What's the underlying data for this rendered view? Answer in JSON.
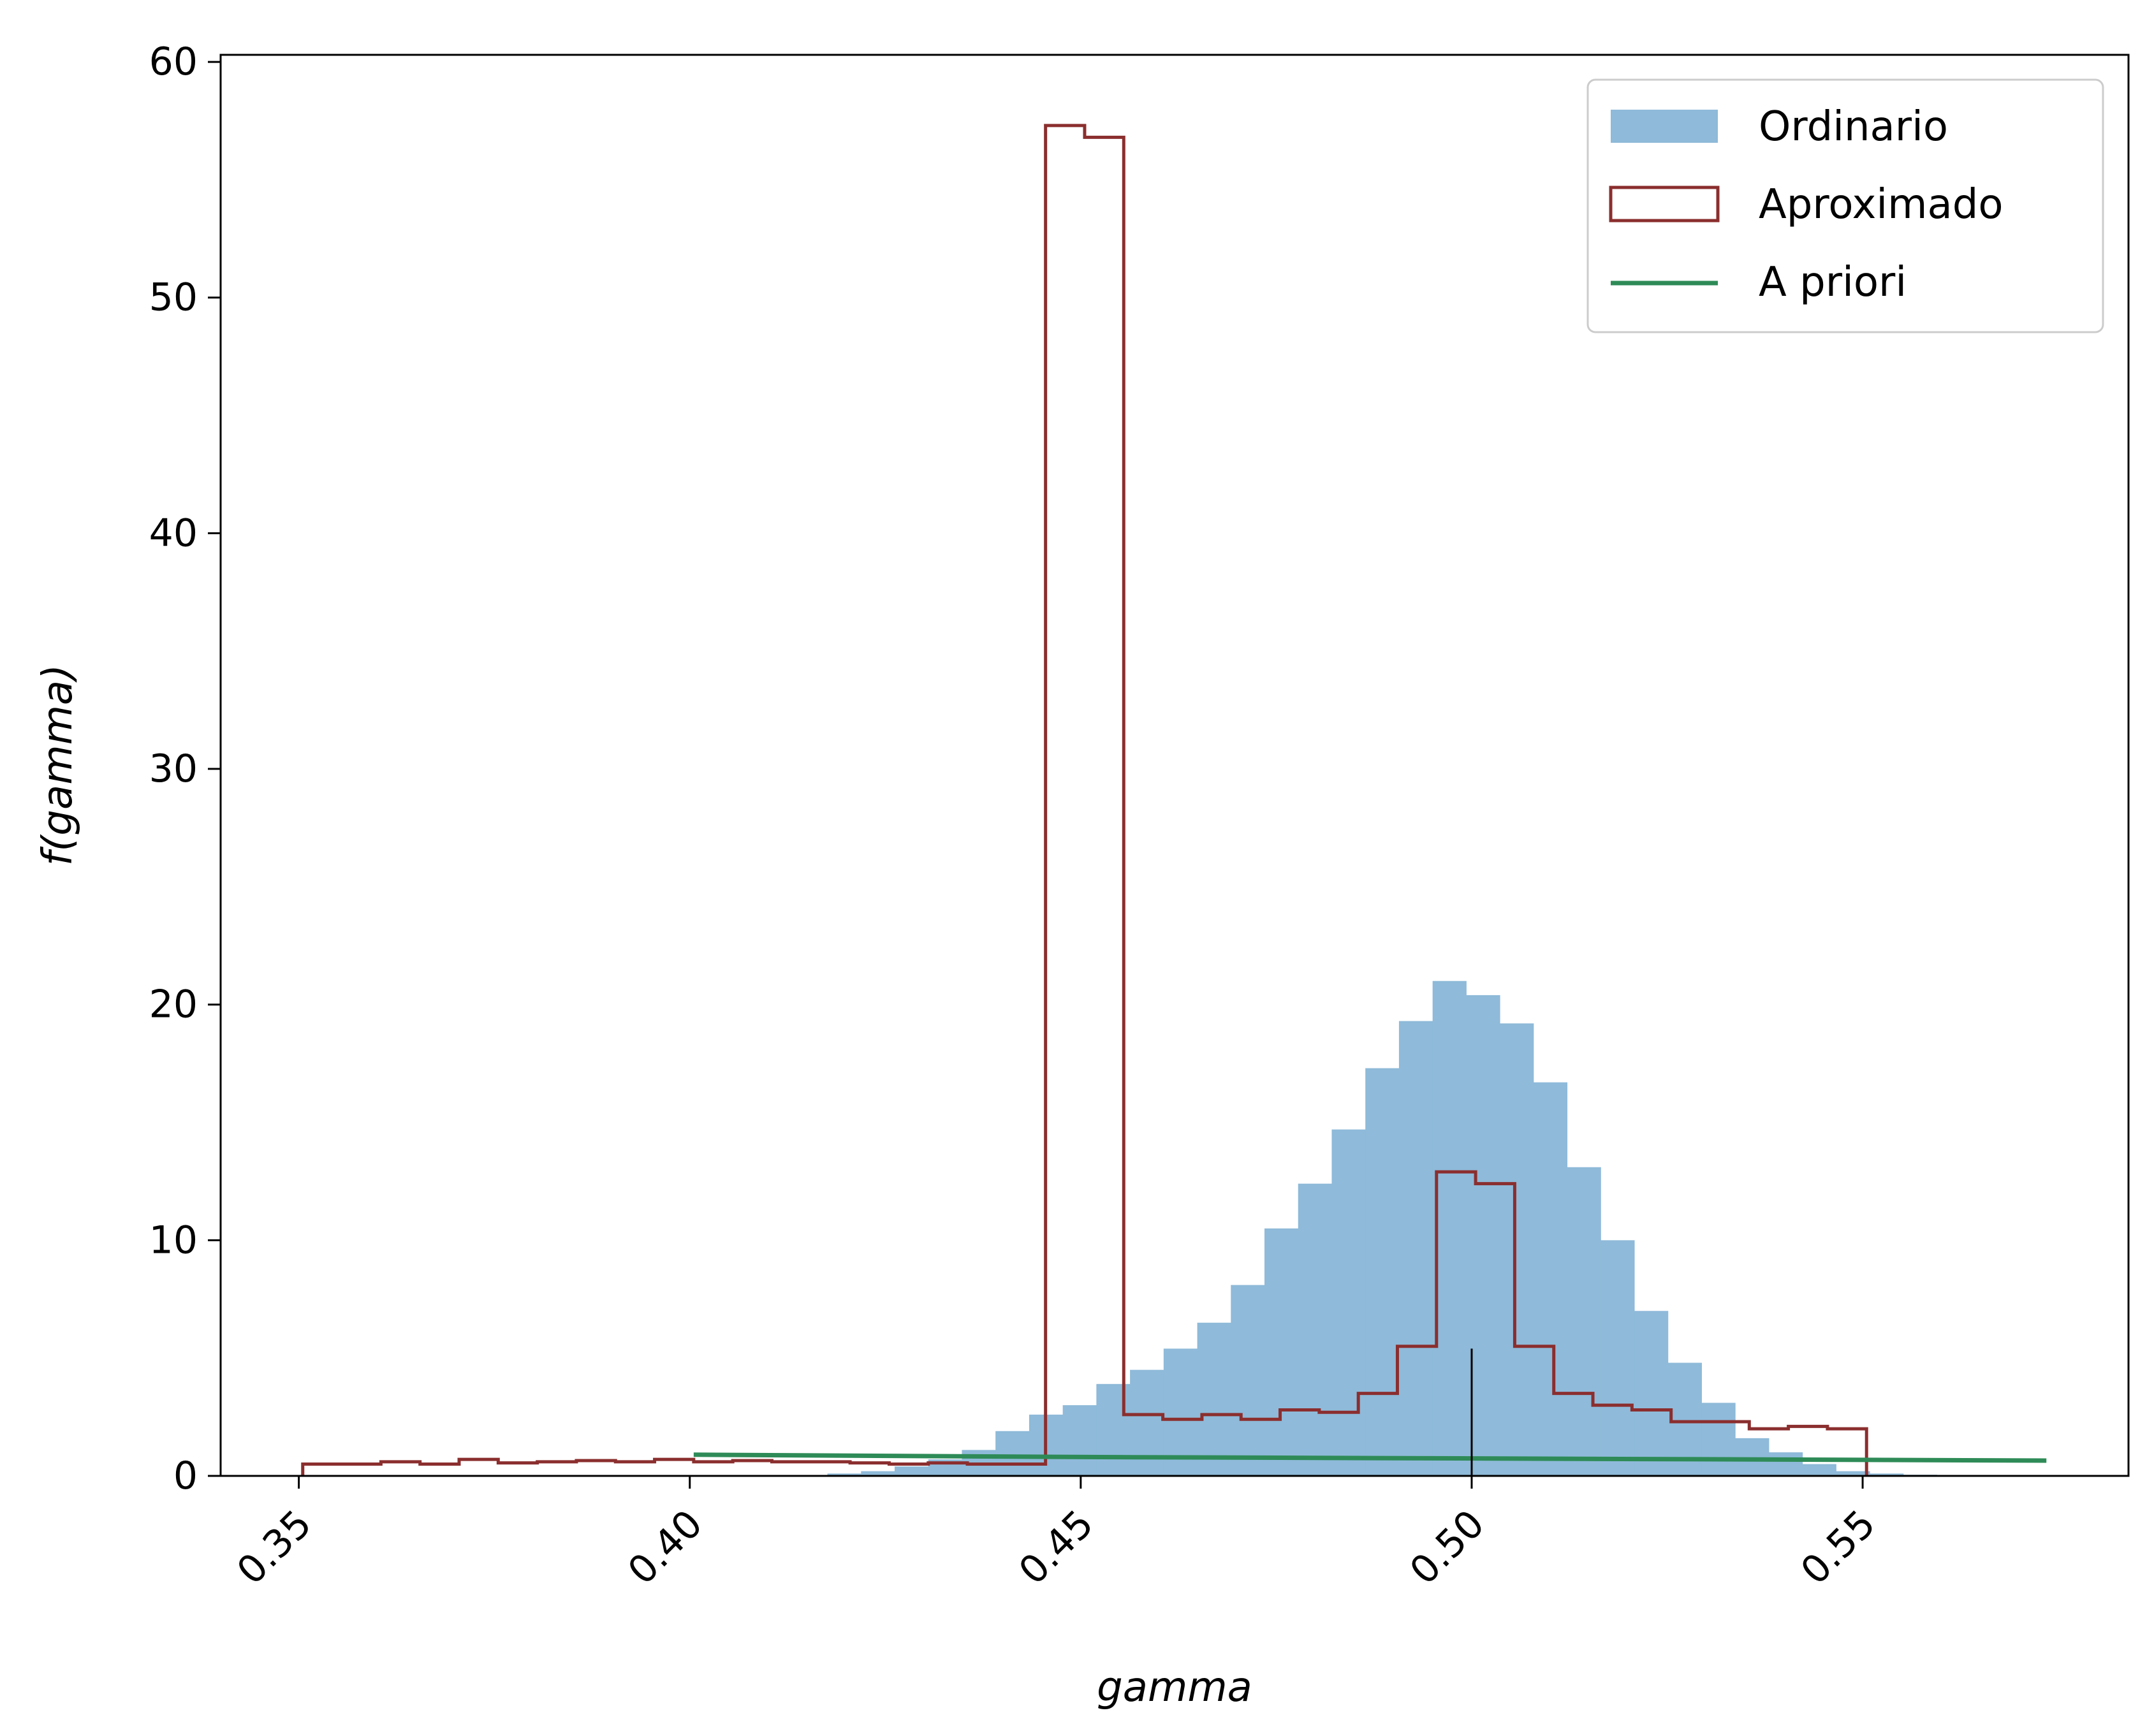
{
  "chart_data": {
    "type": "histogram",
    "title": "",
    "xlabel": "gamma",
    "ylabel": "f(gamma)",
    "xlim": [
      0.34,
      0.584
    ],
    "ylim": [
      0,
      60.3
    ],
    "xticks": [
      0.35,
      0.4,
      0.45,
      0.5,
      0.55
    ],
    "xtick_labels": [
      "0.35",
      "0.40",
      "0.45",
      "0.50",
      "0.55"
    ],
    "yticks": [
      0,
      10,
      20,
      30,
      40,
      50,
      60
    ],
    "ytick_labels": [
      "0",
      "10",
      "20",
      "30",
      "40",
      "50",
      "60"
    ],
    "grid": false,
    "legend_position": "top-right",
    "series": [
      {
        "name": "Ordinario",
        "kind": "filled-histogram",
        "color": "#8fbad9",
        "bin_edges": [
          0.4176,
          0.4219,
          0.4262,
          0.4305,
          0.4348,
          0.4391,
          0.4434,
          0.4477,
          0.452,
          0.4563,
          0.4606,
          0.4649,
          0.4692,
          0.4735,
          0.4778,
          0.4821,
          0.4864,
          0.4907,
          0.495,
          0.4993,
          0.5036,
          0.5079,
          0.5122,
          0.5165,
          0.5208,
          0.5251,
          0.5294,
          0.5337,
          0.538,
          0.5423,
          0.5466,
          0.5509,
          0.5552,
          0.5595
        ],
        "values": [
          0.1,
          0.2,
          0.4,
          0.7,
          1.1,
          1.9,
          2.6,
          3.0,
          3.9,
          4.5,
          5.4,
          6.5,
          8.1,
          10.5,
          12.4,
          14.7,
          17.3,
          19.3,
          21.0,
          20.4,
          19.2,
          16.7,
          13.1,
          10.0,
          7.0,
          4.8,
          3.1,
          1.6,
          1.0,
          0.5,
          0.2,
          0.1,
          0.05
        ]
      },
      {
        "name": "Aproximado",
        "kind": "step-histogram",
        "color": "#8b2e2e",
        "bin_edges": [
          0.3505,
          0.3555,
          0.3605,
          0.3655,
          0.3705,
          0.3755,
          0.3805,
          0.3855,
          0.3905,
          0.3955,
          0.4005,
          0.4055,
          0.4105,
          0.4155,
          0.4205,
          0.4255,
          0.4305,
          0.4355,
          0.4405,
          0.4455,
          0.4505,
          0.4555,
          0.4605,
          0.4655,
          0.4705,
          0.4755,
          0.4805,
          0.4855,
          0.4905,
          0.4955,
          0.5005,
          0.5055,
          0.5105,
          0.5155,
          0.5205,
          0.5255,
          0.5305,
          0.5355,
          0.5405,
          0.5455,
          0.5505
        ],
        "values": [
          0.5,
          0.5,
          0.6,
          0.5,
          0.7,
          0.55,
          0.6,
          0.65,
          0.6,
          0.7,
          0.6,
          0.65,
          0.6,
          0.6,
          0.55,
          0.5,
          0.55,
          0.5,
          0.5,
          57.3,
          56.8,
          2.6,
          2.4,
          2.6,
          2.4,
          2.8,
          2.7,
          3.5,
          5.5,
          12.9,
          12.4,
          5.5,
          3.5,
          3.0,
          2.8,
          2.3,
          2.3,
          2.0,
          2.1,
          2.0
        ]
      },
      {
        "name": "A priori",
        "kind": "line",
        "color": "#2e8b57",
        "x": [
          0.4005,
          0.4255,
          0.4505,
          0.4755,
          0.5005,
          0.5255,
          0.5505,
          0.5735
        ],
        "y": [
          0.9,
          0.85,
          0.8,
          0.77,
          0.74,
          0.71,
          0.68,
          0.65
        ]
      }
    ],
    "annotations": [
      {
        "kind": "vertical-marker",
        "x": 0.5,
        "y_top": 5.4,
        "color": "#000000"
      }
    ]
  }
}
